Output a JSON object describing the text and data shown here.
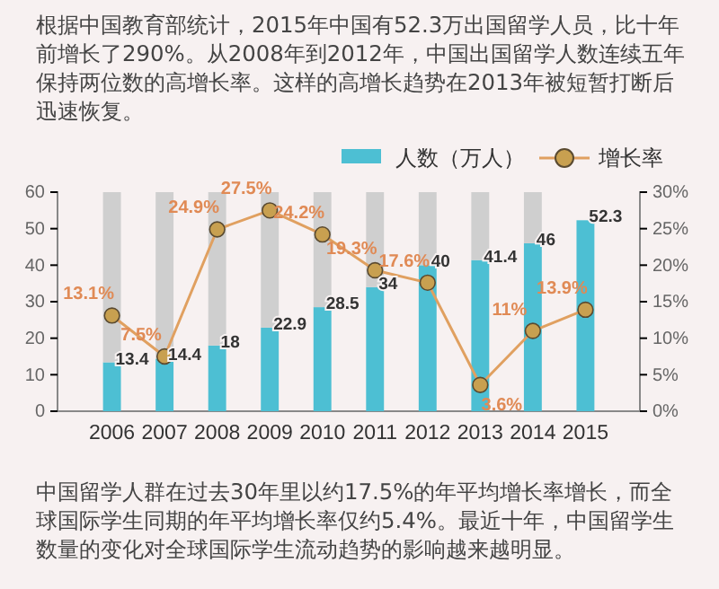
{
  "chart_data": {
    "type": "bar",
    "title": "根据中国教育部统计，2015年中国有52.3万出国留学人员，比十年前增长了290%。从2008年到2012年，中国出国留学人数连续五年保持两位数的高增长率。这样的高增长趋势在2013年被短暂打断后迅速恢复。",
    "annotations": [
      "中国留学人群在过去30年里以约17.5%的年平均增长率增长，而全球国际学生同期的年平均增长率仅约5.4%。最近十年，中国留学生数量的变化对全球国际学生流动趋势的影响越来越明显。"
    ],
    "categories": [
      "2006",
      "2007",
      "2008",
      "2009",
      "2010",
      "2011",
      "2012",
      "2013",
      "2014",
      "2015"
    ],
    "series": [
      {
        "name": "人数（万人）",
        "color": "#4dbfd3",
        "values": [
          13.4,
          14.4,
          18,
          22.9,
          28.5,
          34,
          40,
          41.4,
          46,
          52.3
        ],
        "value_labels": [
          "13.4",
          "14.4",
          "18",
          "22.9",
          "28.5",
          "34",
          "40",
          "41.4",
          "46",
          "52.3"
        ]
      },
      {
        "color": "#cfcfcf",
        "values": [
          46.6,
          45.6,
          42,
          37.1,
          31.5,
          26,
          20,
          18.6,
          14,
          null
        ]
      },
      {
        "name": "增长率",
        "type": "line",
        "axis": "y2",
        "color": "#e0a060",
        "marker": "circle",
        "values": [
          13.1,
          7.5,
          24.9,
          27.5,
          24.2,
          19.3,
          17.6,
          3.6,
          11,
          13.9
        ],
        "value_labels": [
          "13.1%",
          "7.5%",
          "24.9%",
          "27.5%",
          "24.2%",
          "19.3%",
          "17.6%",
          "3.6%",
          "11%",
          "13.9%"
        ]
      }
    ],
    "ylim": [
      0,
      60
    ],
    "yticks": [
      0,
      10,
      20,
      30,
      40,
      50,
      60
    ],
    "y2lim": [
      0,
      30
    ],
    "y2ticks": [
      {
        "value": 0,
        "label": "0%"
      },
      {
        "value": 5,
        "label": "5%"
      },
      {
        "value": 10,
        "label": "10%"
      },
      {
        "value": 15,
        "label": "15%"
      },
      {
        "value": 20,
        "label": "20%"
      },
      {
        "value": 25,
        "label": "25%"
      },
      {
        "value": 30,
        "label": "30%"
      }
    ],
    "stacked": true,
    "legend": "top right",
    "grid": false
  }
}
